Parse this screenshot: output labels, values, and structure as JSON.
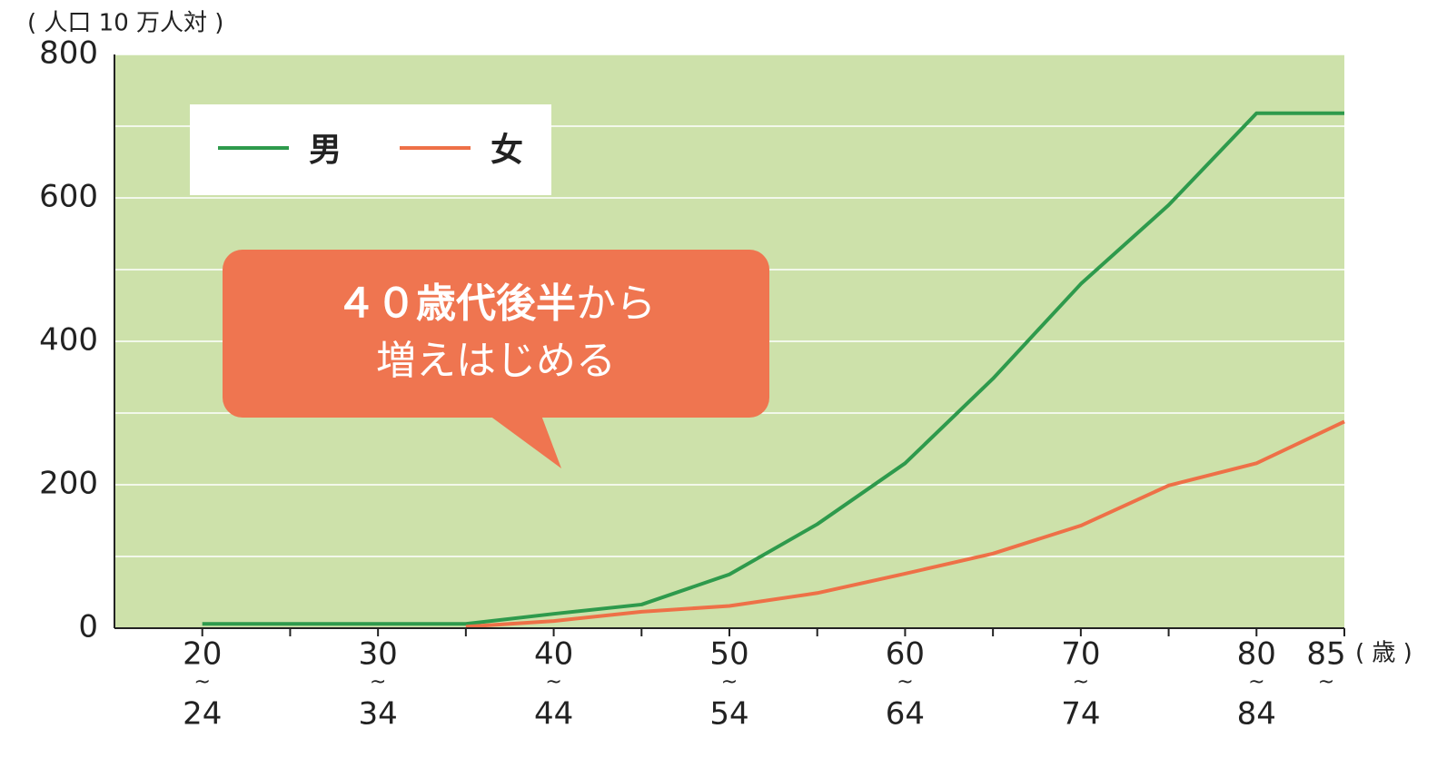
{
  "chart_data": {
    "type": "line",
    "unit_label": "( 人口 10 万人対 )",
    "x_unit_label": "( 歳 )",
    "categories": [
      [
        "20",
        "~",
        "24"
      ],
      null,
      [
        "30",
        "~",
        "34"
      ],
      null,
      [
        "40",
        "~",
        "44"
      ],
      null,
      [
        "50",
        "~",
        "54"
      ],
      null,
      [
        "60",
        "~",
        "64"
      ],
      null,
      [
        "70",
        "~",
        "74"
      ],
      null,
      [
        "80",
        "~",
        "84"
      ],
      [
        "85",
        "~"
      ]
    ],
    "series": [
      {
        "name": "男",
        "color": "#2e9a4c",
        "values": [
          6,
          6,
          6,
          6,
          20,
          33,
          75,
          145,
          230,
          348,
          480,
          590,
          718,
          718
        ]
      },
      {
        "name": "女",
        "color": "#ee7047",
        "values": [
          null,
          null,
          null,
          2,
          10,
          23,
          31,
          49,
          76,
          104,
          143,
          199,
          230,
          288
        ]
      }
    ],
    "ylim": [
      0,
      800
    ],
    "yticks": [
      0,
      200,
      400,
      600,
      800
    ],
    "minor_yticks": [
      100,
      300,
      500,
      700
    ],
    "grid": true,
    "background": "#cde1aa",
    "annotation": {
      "bold": "４０歳代後半",
      "rest": "から",
      "line2": "増えはじめる",
      "color": "#ef7550"
    }
  }
}
